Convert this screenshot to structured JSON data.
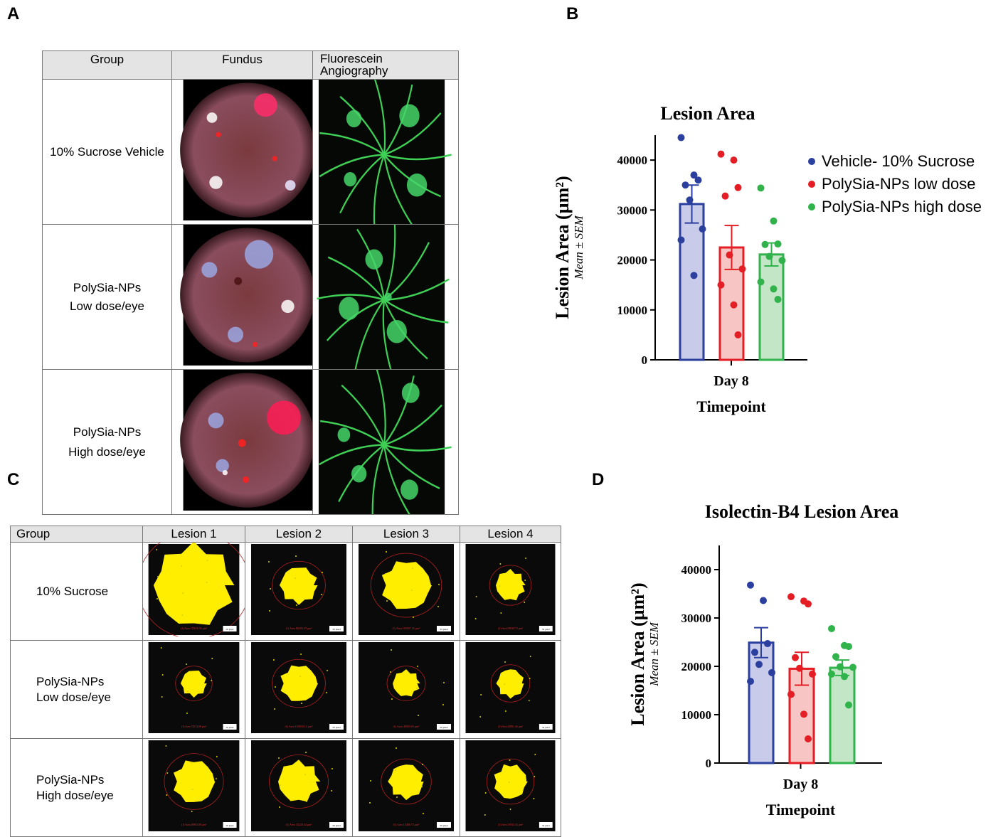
{
  "panels": {
    "a": "A",
    "b": "B",
    "c": "C",
    "d": "D"
  },
  "table_a": {
    "headers": [
      "Group",
      "Fundus",
      "Fluorescein\nAngiography"
    ],
    "rows": [
      {
        "group": "10% Sucrose Vehicle"
      },
      {
        "group": "PolySia-NPs\nLow dose/eye"
      },
      {
        "group": "PolySia-NPs\nHigh dose/eye"
      }
    ]
  },
  "table_c": {
    "headers": [
      "Group",
      "Lesion 1",
      "Lesion 2",
      "Lesion 3",
      "Lesion 4"
    ],
    "rows": [
      {
        "group": "10% Sucrose",
        "lesions": [
          {
            "area_label": "(1) Area 172616.56 µm²",
            "sizes": [
              0.4
            ]
          },
          {
            "area_label": "(1) Area 86284.29 µm²",
            "sizes": [
              0.18
            ]
          },
          {
            "area_label": "(1) Area 103907.16 µm²",
            "sizes": [
              0.24
            ]
          },
          {
            "area_label": "(1) Area 59038.73 µm²",
            "sizes": [
              0.15
            ]
          }
        ]
      },
      {
        "group": "PolySia-NPs\nLow dose/eye",
        "lesions": [
          {
            "area_label": "(1) Area 72014.08 µm²",
            "sizes": [
              0.13
            ]
          },
          {
            "area_label": "(1) Area 103030.14 µm²",
            "sizes": [
              0.18
            ]
          },
          {
            "area_label": "(1) Area 49003.93 µm²",
            "sizes": [
              0.13
            ]
          },
          {
            "area_label": "(1) Area 20881.46 µm²",
            "sizes": [
              0.14
            ]
          }
        ]
      },
      {
        "group": "PolySia-NPs\nHigh dose/eye",
        "lesions": [
          {
            "area_label": "(1) Area 49883.08 µm²",
            "sizes": [
              0.21
            ]
          },
          {
            "area_label": "(1) Area 35220.34 µm²",
            "sizes": [
              0.2
            ]
          },
          {
            "area_label": "(1) Area 15486.73 µm²",
            "sizes": [
              0.17
            ]
          },
          {
            "area_label": "(1) Area 31932.43 µm²",
            "sizes": [
              0.17
            ]
          }
        ]
      }
    ],
    "scale_label": "50 pixel"
  },
  "colors": {
    "vehicle": "#2b3f9e",
    "low": "#e51e25",
    "high": "#2fb34a",
    "vehicle_fill": "#c9cbeb",
    "low_fill": "#f6c5c4",
    "high_fill": "#c3e6c7"
  },
  "chart_data": [
    {
      "type": "bar",
      "title": "Lesion Area",
      "xlabel": "Timepoint",
      "ylabel": "Lesion Area (µm²)",
      "ylabel_sub": "Mean ± SEM",
      "categories": [
        "Day 8"
      ],
      "ylim": [
        0,
        45000
      ],
      "yticks": [
        0,
        10000,
        20000,
        30000,
        40000
      ],
      "legend_position": "right",
      "series": [
        {
          "name": "Vehicle- 10% Sucrose",
          "mean": 31200,
          "sem": 3800,
          "points": [
            44500,
            37000,
            36000,
            35000,
            32000,
            26200,
            24000,
            16900
          ]
        },
        {
          "name": "PolySia-NPs low dose",
          "mean": 22500,
          "sem": 4400,
          "points": [
            41200,
            40000,
            34500,
            32800,
            21000,
            18200,
            15000,
            11000,
            5000
          ]
        },
        {
          "name": "PolySia-NPs high dose",
          "mean": 21100,
          "sem": 2300,
          "points": [
            34400,
            27800,
            23200,
            23100,
            20700,
            19900,
            15600,
            14200,
            12100
          ]
        }
      ]
    },
    {
      "type": "bar",
      "title": "Isolectin-B4 Lesion Area",
      "xlabel": "Timepoint",
      "ylabel": "Lesion Area (µm²)",
      "ylabel_sub": "Mean ± SEM",
      "categories": [
        "Day 8"
      ],
      "ylim": [
        0,
        45000
      ],
      "yticks": [
        0,
        10000,
        20000,
        30000,
        40000
      ],
      "series": [
        {
          "mean": 24900,
          "sem": 3100,
          "points": [
            36800,
            33600,
            24700,
            22900,
            20400,
            18700,
            16900
          ]
        },
        {
          "mean": 19500,
          "sem": 3400,
          "points": [
            34400,
            33500,
            32900,
            21800,
            19600,
            18400,
            14200,
            10100,
            5000
          ]
        },
        {
          "mean": 19700,
          "sem": 1600,
          "points": [
            27800,
            24300,
            24100,
            22000,
            19900,
            19800,
            18400,
            17900,
            12000
          ]
        }
      ]
    }
  ]
}
